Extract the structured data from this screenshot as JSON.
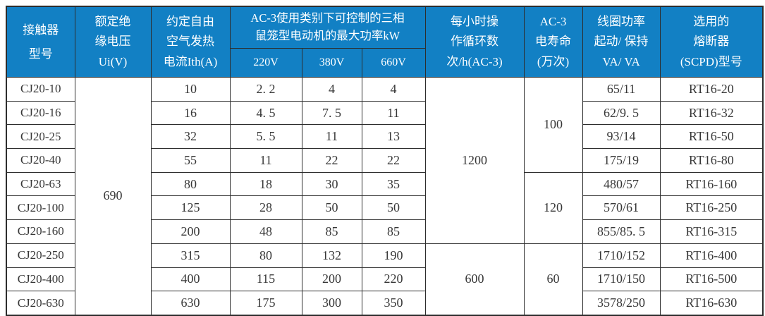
{
  "colors": {
    "header_bg": "#1280c4",
    "header_text": "#ffffff",
    "body_text": "#373737",
    "border": "#2d2d2d",
    "body_bg": "#ffffff"
  },
  "table": {
    "header": {
      "model": [
        "接触器",
        "型号"
      ],
      "insulation_voltage": [
        "额定绝",
        "缘电压",
        "Ui(V)"
      ],
      "thermal_current": [
        "约定自由",
        "空气发热",
        "电流Ith(A)"
      ],
      "ac3_power_group": [
        "AC-3使用类别下可控制的三相",
        "鼠笼型电动机的最大功率kW"
      ],
      "voltage_cols": [
        "220V",
        "380V",
        "660V"
      ],
      "cycles_per_hour": [
        "每小时操",
        "作循环数",
        "次/h(AC-3)"
      ],
      "ac3_life": [
        "AC-3",
        "电寿命",
        "(万次)"
      ],
      "coil_power": [
        "线圈功率",
        "起动/ 保持",
        "VA/ VA"
      ],
      "fuse": [
        "选用的",
        "熔断器",
        "(SCPD)型号"
      ]
    },
    "rows": [
      {
        "cells": [
          {
            "t": "CJ20-10"
          },
          {
            "t": "690",
            "rs": 10
          },
          {
            "t": "10"
          },
          {
            "t": "2. 2"
          },
          {
            "t": "4"
          },
          {
            "t": "4"
          },
          {
            "t": "1200",
            "rs": 7
          },
          {
            "t": "100",
            "rs": 4
          },
          {
            "t": "65/11"
          },
          {
            "t": "RT16-20"
          }
        ]
      },
      {
        "cells": [
          {
            "t": "CJ20-16"
          },
          {
            "t": "16"
          },
          {
            "t": "4. 5"
          },
          {
            "t": "7. 5"
          },
          {
            "t": "11"
          },
          {
            "t": "62/9. 5"
          },
          {
            "t": "RT16-32"
          }
        ]
      },
      {
        "cells": [
          {
            "t": "CJ20-25"
          },
          {
            "t": "32"
          },
          {
            "t": "5. 5"
          },
          {
            "t": "11"
          },
          {
            "t": "13"
          },
          {
            "t": "93/14"
          },
          {
            "t": "RT16-50"
          }
        ]
      },
      {
        "cells": [
          {
            "t": "CJ20-40"
          },
          {
            "t": "55"
          },
          {
            "t": "11"
          },
          {
            "t": "22"
          },
          {
            "t": "22"
          },
          {
            "t": "175/19"
          },
          {
            "t": "RT16-80"
          }
        ]
      },
      {
        "cells": [
          {
            "t": "CJ20-63"
          },
          {
            "t": "80"
          },
          {
            "t": "18"
          },
          {
            "t": "30"
          },
          {
            "t": "35"
          },
          {
            "t": "120",
            "rs": 3
          },
          {
            "t": "480/57"
          },
          {
            "t": "RT16-160"
          }
        ]
      },
      {
        "cells": [
          {
            "t": "CJ20-100"
          },
          {
            "t": "125"
          },
          {
            "t": "28"
          },
          {
            "t": "50"
          },
          {
            "t": "50"
          },
          {
            "t": "570/61"
          },
          {
            "t": "RT16-250"
          }
        ]
      },
      {
        "cells": [
          {
            "t": "CJ20-160"
          },
          {
            "t": "200"
          },
          {
            "t": "48"
          },
          {
            "t": "85"
          },
          {
            "t": "85"
          },
          {
            "t": "855/85. 5"
          },
          {
            "t": "RT16-315"
          }
        ]
      },
      {
        "cells": [
          {
            "t": "CJ20-250"
          },
          {
            "t": "315"
          },
          {
            "t": "80"
          },
          {
            "t": "132"
          },
          {
            "t": "190"
          },
          {
            "t": "600",
            "rs": 3
          },
          {
            "t": "60",
            "rs": 3
          },
          {
            "t": "1710/152"
          },
          {
            "t": "RT16-400"
          }
        ]
      },
      {
        "cells": [
          {
            "t": "CJ20-400"
          },
          {
            "t": "400"
          },
          {
            "t": "115"
          },
          {
            "t": "200"
          },
          {
            "t": "220"
          },
          {
            "t": "1710/150"
          },
          {
            "t": "RT16-500"
          }
        ]
      },
      {
        "cells": [
          {
            "t": "CJ20-630"
          },
          {
            "t": "630"
          },
          {
            "t": "175"
          },
          {
            "t": "300"
          },
          {
            "t": "350"
          },
          {
            "t": "3578/250"
          },
          {
            "t": "RT16-630"
          }
        ]
      }
    ]
  }
}
